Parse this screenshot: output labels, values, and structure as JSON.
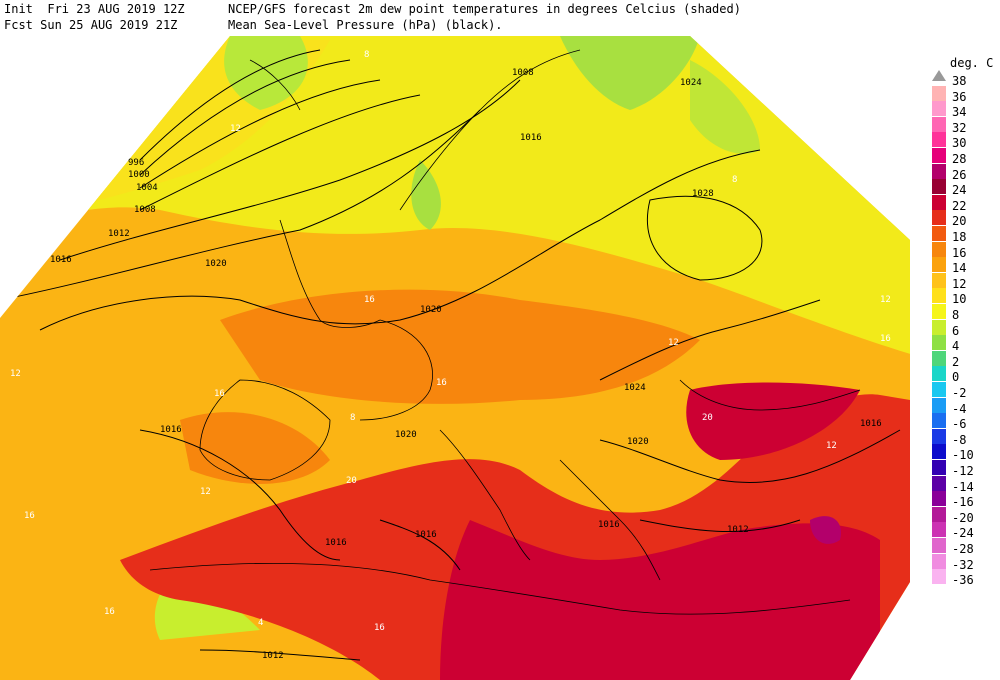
{
  "header": {
    "init_label": "Init",
    "init_time": "Fri 23 AUG 2019 12Z",
    "fcst_label": "Fcst",
    "fcst_time": "Sun 25 AUG 2019 21Z",
    "line1_text": "NCEP/GFS forecast 2m dew point temperatures in degrees Celcius (shaded)",
    "line2_text": "Mean Sea-Level Pressure (hPa) (black)."
  },
  "legend": {
    "unit": "deg. C",
    "entries": [
      {
        "label": "38",
        "color": "#999999"
      },
      {
        "label": "36",
        "color": "#ffb3b3"
      },
      {
        "label": "34",
        "color": "#ff99cc"
      },
      {
        "label": "32",
        "color": "#ff66b3"
      },
      {
        "label": "30",
        "color": "#ff3399"
      },
      {
        "label": "28",
        "color": "#e6007a"
      },
      {
        "label": "26",
        "color": "#b3006b"
      },
      {
        "label": "24",
        "color": "#990033"
      },
      {
        "label": "22",
        "color": "#cc0033"
      },
      {
        "label": "20",
        "color": "#e62e1a"
      },
      {
        "label": "18",
        "color": "#f25a0f"
      },
      {
        "label": "16",
        "color": "#f7860d"
      },
      {
        "label": "14",
        "color": "#fba20d"
      },
      {
        "label": "12",
        "color": "#ffc21a"
      },
      {
        "label": "10",
        "color": "#ffe01a"
      },
      {
        "label": "8",
        "color": "#f5f51a"
      },
      {
        "label": "6",
        "color": "#c8ee2e"
      },
      {
        "label": "4",
        "color": "#8ee044"
      },
      {
        "label": "2",
        "color": "#4ed67a"
      },
      {
        "label": "0",
        "color": "#1ad6c8"
      },
      {
        "label": "-2",
        "color": "#1ac8f0"
      },
      {
        "label": "-4",
        "color": "#1a9cf5"
      },
      {
        "label": "-6",
        "color": "#1a6ef0"
      },
      {
        "label": "-8",
        "color": "#1a3ae6"
      },
      {
        "label": "-10",
        "color": "#0d0dcc"
      },
      {
        "label": "-12",
        "color": "#3300b3"
      },
      {
        "label": "-14",
        "color": "#5c00a6"
      },
      {
        "label": "-16",
        "color": "#8a0099"
      },
      {
        "label": "-20",
        "color": "#b31a99"
      },
      {
        "label": "-24",
        "color": "#cc33b3"
      },
      {
        "label": "-28",
        "color": "#e066cc"
      },
      {
        "label": "-32",
        "color": "#f08ce0"
      },
      {
        "label": "-36",
        "color": "#fab3f0"
      }
    ]
  },
  "isobar_labels": [
    "996",
    "1000",
    "1004",
    "1008",
    "1012",
    "1016",
    "1020",
    "1024",
    "1028",
    "1008",
    "1016",
    "1020",
    "1024",
    "1020",
    "1016",
    "1016",
    "1012",
    "1016",
    "1012",
    "1016",
    "1016",
    "1020"
  ],
  "dewpoint_labels": [
    "8",
    "12",
    "16",
    "12",
    "8",
    "12",
    "16",
    "20",
    "16",
    "12",
    "16",
    "8",
    "16",
    "20",
    "12",
    "12",
    "16",
    "4",
    "16"
  ]
}
